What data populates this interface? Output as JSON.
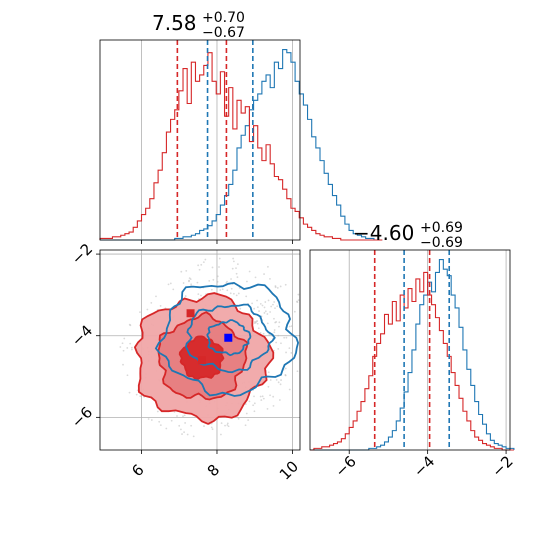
{
  "chart_data": {
    "type": "corner",
    "panels": [
      {
        "panel": "hist-param1",
        "title_main": "7.58",
        "title_sup": "+0.70",
        "title_sub": "−0.67",
        "xlim": [
          4.9,
          10.2
        ],
        "grid": true,
        "x_ticks": [
          6,
          8,
          10
        ],
        "series": [
          {
            "color": "#1f77b4",
            "quantile_lines": [
              7.75,
              8.95
            ],
            "bins": {
              "start": 4.9,
              "width": 0.11,
              "counts": [
                0,
                0,
                0,
                0,
                0,
                0,
                0,
                0,
                0,
                0,
                0,
                0,
                0,
                0,
                0,
                0,
                0,
                0,
                1,
                1,
                2,
                2,
                3,
                4,
                6,
                7,
                9,
                12,
                16,
                22,
                28,
                35,
                44,
                58,
                66,
                72,
                82,
                88,
                92,
                100,
                104,
                96,
                112,
                108,
                120,
                118,
                112,
                100,
                92,
                85,
                76,
                65,
                58,
                50,
                42,
                35,
                28,
                22,
                15,
                10,
                6,
                4,
                3,
                2,
                1,
                1,
                0,
                0
              ]
            }
          },
          {
            "color": "#d62728",
            "quantile_lines": [
              6.95,
              8.25
            ],
            "bins": {
              "start": 4.9,
              "width": 0.11,
              "counts": [
                1,
                1,
                1,
                2,
                2,
                3,
                4,
                5,
                8,
                12,
                16,
                20,
                26,
                36,
                44,
                55,
                68,
                76,
                82,
                94,
                108,
                86,
                112,
                100,
                104,
                110,
                118,
                100,
                92,
                106,
                78,
                96,
                70,
                88,
                80,
                84,
                62,
                72,
                58,
                50,
                60,
                48,
                40,
                38,
                32,
                26,
                20,
                18,
                14,
                10,
                8,
                6,
                4,
                3,
                2,
                2,
                1,
                1,
                0,
                0,
                0,
                0,
                0,
                0,
                0,
                0,
                0,
                0
              ]
            }
          }
        ]
      },
      {
        "panel": "hist-param2",
        "title_main": "−4.60",
        "title_sup": "+0.69",
        "title_sub": "−0.69",
        "xlim": [
          -7.0,
          -1.9
        ],
        "grid": true,
        "x_ticks": [
          -6,
          -4,
          -2
        ],
        "x_tick_labels": [
          "−6",
          "−4",
          "−2"
        ],
        "series": [
          {
            "color": "#1f77b4",
            "quantile_lines": [
              -4.6,
              -3.45
            ],
            "bins": {
              "start": -7.0,
              "width": 0.1,
              "counts": [
                0,
                0,
                0,
                0,
                0,
                0,
                0,
                0,
                0,
                0,
                0,
                0,
                0,
                0,
                0,
                1,
                1,
                2,
                3,
                5,
                8,
                12,
                18,
                26,
                36,
                48,
                62,
                78,
                90,
                96,
                104,
                98,
                110,
                118,
                112,
                108,
                96,
                88,
                76,
                62,
                50,
                40,
                30,
                22,
                16,
                10,
                6,
                4,
                3,
                2,
                1,
                1
              ]
            }
          },
          {
            "color": "#d62728",
            "quantile_lines": [
              -5.35,
              -3.95
            ],
            "bins": {
              "start": -7.0,
              "width": 0.1,
              "counts": [
                0,
                1,
                1,
                2,
                2,
                3,
                4,
                5,
                7,
                10,
                14,
                18,
                24,
                30,
                38,
                46,
                58,
                66,
                72,
                84,
                78,
                92,
                80,
                96,
                88,
                100,
                92,
                106,
                98,
                110,
                96,
                90,
                82,
                74,
                66,
                58,
                48,
                40,
                32,
                24,
                18,
                12,
                8,
                6,
                4,
                3,
                2,
                1,
                1,
                0,
                0,
                0
              ]
            }
          }
        ]
      },
      {
        "panel": "2d-contour",
        "xlim": [
          4.9,
          10.2
        ],
        "ylim": [
          -6.8,
          -1.9
        ],
        "x_ticks": [
          6,
          8,
          10
        ],
        "y_ticks": [
          -2,
          -4,
          -6
        ],
        "y_tick_labels": [
          "−2",
          "−4",
          "−6"
        ],
        "grid": true,
        "series": [
          {
            "color": "#1f77b4",
            "center": [
              8.3,
              -4.05
            ],
            "contour_radii": [
              [
                0.55,
                0.4
              ],
              [
                1.1,
                0.8
              ],
              [
                1.75,
                1.35
              ]
            ],
            "filled": false
          },
          {
            "color": "#d62728",
            "center": [
              7.6,
              -4.55
            ],
            "contour_radii": [
              [
                0.55,
                0.5
              ],
              [
                1.15,
                1.0
              ],
              [
                1.75,
                1.5
              ]
            ],
            "filled": true
          }
        ],
        "markers": [
          {
            "color": "#d62728",
            "x": 7.3,
            "y": -3.45
          },
          {
            "color": "#d62728",
            "x": 7.6,
            "y": -4.6
          },
          {
            "color": "#0000ff",
            "x": 8.3,
            "y": -4.05
          }
        ]
      }
    ]
  }
}
